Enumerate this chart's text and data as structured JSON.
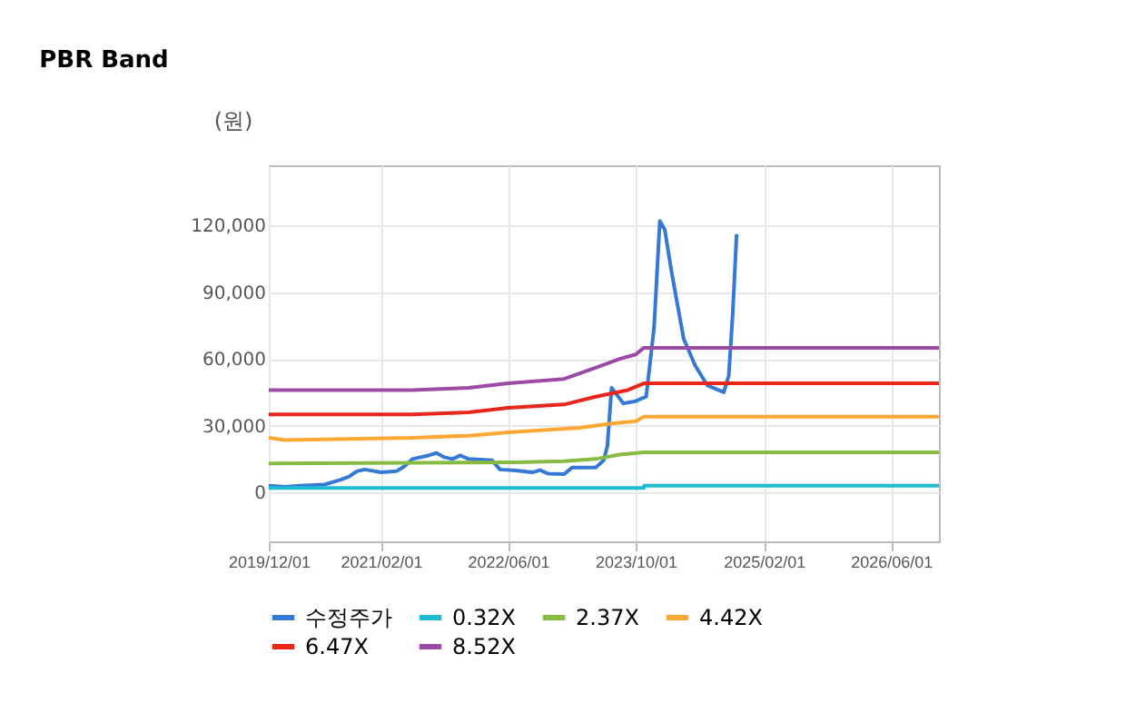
{
  "chart_data": {
    "type": "line",
    "title": "PBR Band",
    "ylabel": "(원)",
    "xlim": [
      "2019-12-01",
      "2026-12-01"
    ],
    "xticks": [
      {
        "value": "2019-12-01",
        "label": "2019/12/01"
      },
      {
        "value": "2021-02-01",
        "label": "2021/02/01"
      },
      {
        "value": "2022-06-01",
        "label": "2022/06/01"
      },
      {
        "value": "2023-10-01",
        "label": "2023/10/01"
      },
      {
        "value": "2025-02-01",
        "label": "2025/02/01"
      },
      {
        "value": "2026-06-01",
        "label": "2026/06/01"
      }
    ],
    "ylim": [
      -22000,
      147000
    ],
    "yticks": [
      {
        "value": 0,
        "label": "0"
      },
      {
        "value": 30000,
        "label": "30,000"
      },
      {
        "value": 60000,
        "label": "60,000"
      },
      {
        "value": 90000,
        "label": "90,000"
      },
      {
        "value": 120000,
        "label": "120,000"
      }
    ],
    "grid": true,
    "legend": "bottom",
    "marker": "none",
    "line_style": "solid",
    "series": [
      {
        "name": "수정주가",
        "color": "#3579d4",
        "x": [
          "2019-12-01",
          "2020-02-01",
          "2020-04-01",
          "2020-07-01",
          "2020-09-01",
          "2020-10-01",
          "2020-11-01",
          "2020-12-01",
          "2021-02-01",
          "2021-04-01",
          "2021-05-01",
          "2021-06-01",
          "2021-08-01",
          "2021-09-01",
          "2021-10-01",
          "2021-11-01",
          "2021-12-01",
          "2022-01-01",
          "2022-04-01",
          "2022-05-01",
          "2022-07-01",
          "2022-09-01",
          "2022-10-01",
          "2022-11-01",
          "2023-01-01",
          "2023-02-01",
          "2023-05-01",
          "2023-06-01",
          "2023-06-15",
          "2023-07-01",
          "2023-07-20",
          "2023-08-15",
          "2023-10-01",
          "2023-10-20",
          "2023-11-10",
          "2023-12-10",
          "2024-01-01",
          "2024-01-20",
          "2024-02-15",
          "2024-04-01",
          "2024-05-15",
          "2024-07-01",
          "2024-08-01",
          "2024-09-01",
          "2024-09-20",
          "2024-10-05",
          "2024-10-20"
        ],
        "values": [
          3000,
          2500,
          3000,
          3500,
          5700,
          7000,
          9500,
          10300,
          9000,
          9500,
          11700,
          15000,
          16600,
          17700,
          15800,
          15000,
          16600,
          15000,
          14400,
          10300,
          9800,
          9000,
          10000,
          8400,
          8200,
          11200,
          11200,
          14400,
          21000,
          47000,
          44000,
          40000,
          41000,
          42000,
          43000,
          74000,
          122000,
          118000,
          99000,
          69000,
          57000,
          48000,
          46500,
          45000,
          52500,
          80000,
          116000
        ]
      },
      {
        "name": "0.32X",
        "color": "#1ebcd0",
        "x": [
          "2019-12-01",
          "2023-11-01",
          "2023-11-02",
          "2026-12-01"
        ],
        "values": [
          2000,
          2000,
          3000,
          3000
        ]
      },
      {
        "name": "2.37X",
        "color": "#86bc42",
        "x": [
          "2019-12-01",
          "2022-07-01",
          "2023-01-01",
          "2023-05-01",
          "2023-08-01",
          "2023-11-01",
          "2026-12-01"
        ],
        "values": [
          13000,
          13500,
          14000,
          15000,
          17000,
          18000,
          18000
        ]
      },
      {
        "name": "4.42X",
        "color": "#ffa733",
        "x": [
          "2019-12-01",
          "2020-02-01",
          "2021-06-01",
          "2022-01-01",
          "2022-06-01",
          "2023-03-01",
          "2023-07-01",
          "2023-10-01",
          "2023-11-01",
          "2026-12-01"
        ],
        "values": [
          24500,
          23500,
          24500,
          25500,
          27000,
          29000,
          31000,
          32000,
          34000,
          34000
        ]
      },
      {
        "name": "6.47X",
        "color": "#e8261c",
        "x": [
          "2019-12-01",
          "2021-06-01",
          "2022-01-01",
          "2022-06-01",
          "2023-01-01",
          "2023-05-01",
          "2023-09-01",
          "2023-11-01",
          "2026-12-01"
        ],
        "values": [
          35000,
          35000,
          36000,
          38000,
          39500,
          43000,
          46000,
          49000,
          49000
        ]
      },
      {
        "name": "8.52X",
        "color": "#9b4aa6",
        "x": [
          "2019-12-01",
          "2021-06-01",
          "2022-01-01",
          "2022-06-01",
          "2023-01-01",
          "2023-05-01",
          "2023-08-01",
          "2023-10-01",
          "2023-11-01",
          "2026-12-01"
        ],
        "values": [
          46000,
          46000,
          47000,
          49000,
          51000,
          56000,
          60000,
          62000,
          65000,
          65000
        ]
      }
    ]
  }
}
